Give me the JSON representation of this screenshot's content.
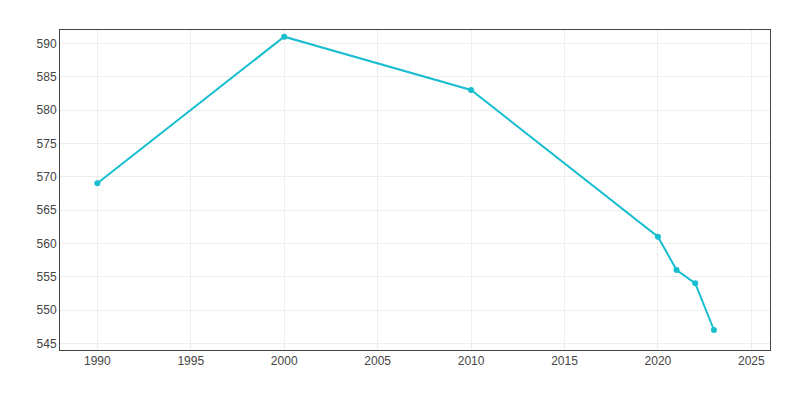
{
  "chart_data": {
    "type": "line",
    "x": [
      1990,
      2000,
      2010,
      2020,
      2021,
      2022,
      2023
    ],
    "values": [
      569,
      591,
      583,
      561,
      556,
      554,
      547
    ],
    "color": "#17BECF",
    "marker": "circle",
    "xlim": [
      1988,
      2026
    ],
    "ylim": [
      544,
      592
    ],
    "xticks": [
      1990,
      1995,
      2000,
      2005,
      2010,
      2015,
      2020,
      2025
    ],
    "yticks": [
      545,
      550,
      555,
      560,
      565,
      570,
      575,
      580,
      585,
      590
    ],
    "grid": true
  }
}
